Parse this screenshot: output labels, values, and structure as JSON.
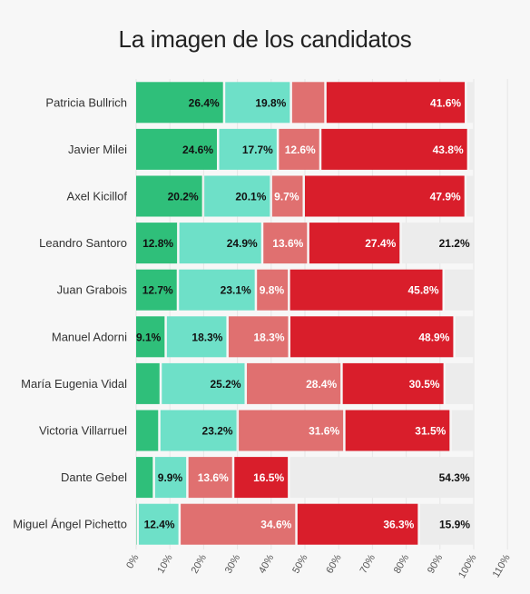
{
  "chart_data": {
    "type": "bar",
    "orientation": "horizontal",
    "stacked": true,
    "title": "La imagen de los candidatos",
    "categories": [
      "Patricia Bullrich",
      "Javier Milei",
      "Axel Kicillof",
      "Leandro Santoro",
      "Juan Grabois",
      "Manuel Adorni",
      "María Eugenia Vidal",
      "Victoria Villarruel",
      "Dante Gebel",
      "Miguel Ángel Pichetto"
    ],
    "series": [
      {
        "color": "#2fbf7a",
        "values": [
          26.4,
          24.6,
          20.2,
          12.8,
          12.7,
          9.1,
          7.6,
          7.2,
          5.6,
          0.8
        ],
        "labels": [
          "26.4%",
          "24.6%",
          "20.2%",
          "12.8%",
          "12.7%",
          "9.1%",
          "",
          "",
          "",
          ""
        ]
      },
      {
        "color": "#6ee0c8",
        "values": [
          19.8,
          17.7,
          20.1,
          24.9,
          23.1,
          18.3,
          25.2,
          23.2,
          9.9,
          12.4
        ],
        "labels": [
          "19.8%",
          "17.7%",
          "20.1%",
          "24.9%",
          "23.1%",
          "18.3%",
          "25.2%",
          "23.2%",
          "9.9%",
          "12.4%"
        ]
      },
      {
        "color": "#e07070",
        "values": [
          10.2,
          12.6,
          9.7,
          13.6,
          9.8,
          18.3,
          28.4,
          31.6,
          13.6,
          34.6
        ],
        "labels": [
          "",
          "12.6%",
          "9.7%",
          "13.6%",
          "9.8%",
          "18.3%",
          "28.4%",
          "31.6%",
          "13.6%",
          "34.6%"
        ]
      },
      {
        "color": "#d91e2b",
        "values": [
          41.6,
          43.8,
          47.9,
          27.4,
          45.8,
          48.9,
          30.5,
          31.5,
          16.5,
          36.3
        ],
        "labels": [
          "41.6%",
          "43.8%",
          "47.9%",
          "27.4%",
          "45.8%",
          "48.9%",
          "30.5%",
          "31.5%",
          "16.5%",
          "36.3%"
        ]
      },
      {
        "color": "#ececec",
        "values": [
          2.0,
          1.3,
          2.1,
          21.2,
          8.6,
          5.4,
          8.3,
          6.5,
          54.3,
          15.9
        ],
        "labels": [
          "",
          "",
          "",
          "21.2%",
          "",
          "",
          "",
          "",
          "54.3%",
          "15.9%"
        ]
      }
    ],
    "xlim": [
      0,
      110
    ],
    "xticks": [
      "0%",
      "10%",
      "20%",
      "30%",
      "40%",
      "50%",
      "60%",
      "70%",
      "80%",
      "90%",
      "100%",
      "110%"
    ],
    "grid": true
  }
}
